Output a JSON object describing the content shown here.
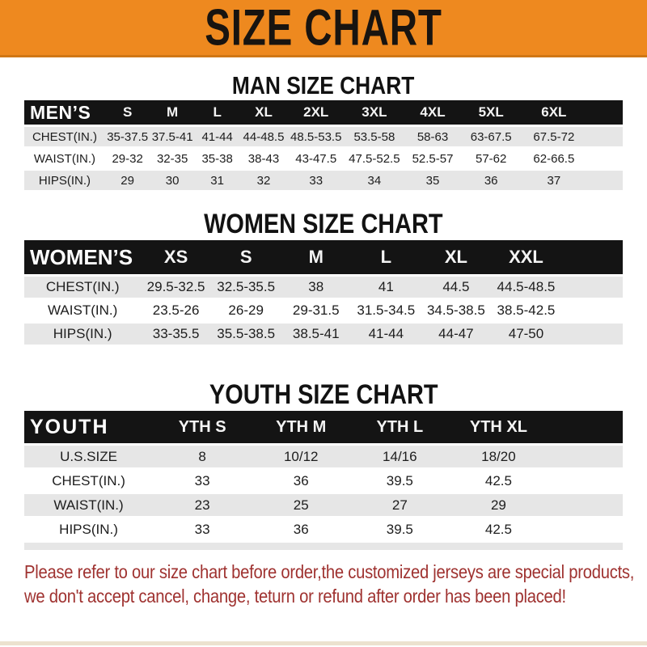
{
  "banner": {
    "title": "SIZE CHART"
  },
  "chart_data": [
    {
      "type": "table",
      "title": "MAN SIZE CHART",
      "header_label": "MEN’S",
      "columns": [
        "S",
        "M",
        "L",
        "XL",
        "2XL",
        "3XL",
        "4XL",
        "5XL",
        "6XL"
      ],
      "rows": [
        {
          "label": "CHEST(IN.)",
          "values": [
            "35-37.5",
            "37.5-41",
            "41-44",
            "44-48.5",
            "48.5-53.5",
            "53.5-58",
            "58-63",
            "63-67.5",
            "67.5-72"
          ]
        },
        {
          "label": "WAIST(IN.)",
          "values": [
            "29-32",
            "32-35",
            "35-38",
            "38-43",
            "43-47.5",
            "47.5-52.5",
            "52.5-57",
            "57-62",
            "62-66.5"
          ]
        },
        {
          "label": "HIPS(IN.)",
          "values": [
            "29",
            "30",
            "31",
            "32",
            "33",
            "34",
            "35",
            "36",
            "37"
          ]
        }
      ]
    },
    {
      "type": "table",
      "title": "WOMEN SIZE CHART",
      "header_label": "WOMEN’S",
      "columns": [
        "XS",
        "S",
        "M",
        "L",
        "XL",
        "XXL"
      ],
      "rows": [
        {
          "label": "CHEST(IN.)",
          "values": [
            "29.5-32.5",
            "32.5-35.5",
            "38",
            "41",
            "44.5",
            "44.5-48.5"
          ]
        },
        {
          "label": "WAIST(IN.)",
          "values": [
            "23.5-26",
            "26-29",
            "29-31.5",
            "31.5-34.5",
            "34.5-38.5",
            "38.5-42.5"
          ]
        },
        {
          "label": "HIPS(IN.)",
          "values": [
            "33-35.5",
            "35.5-38.5",
            "38.5-41",
            "41-44",
            "44-47",
            "47-50"
          ]
        }
      ]
    },
    {
      "type": "table",
      "title": "YOUTH SIZE CHART",
      "header_label": "YOUTH",
      "columns": [
        "YTH S",
        "YTH M",
        "YTH L",
        "YTH XL"
      ],
      "rows": [
        {
          "label": "U.S.SIZE",
          "values": [
            "8",
            "10/12",
            "14/16",
            "18/20"
          ]
        },
        {
          "label": "CHEST(IN.)",
          "values": [
            "33",
            "36",
            "39.5",
            "42.5"
          ]
        },
        {
          "label": "WAIST(IN.)",
          "values": [
            "23",
            "25",
            "27",
            "29"
          ]
        },
        {
          "label": "HIPS(IN.)",
          "values": [
            "33",
            "36",
            "39.5",
            "42.5"
          ]
        }
      ]
    }
  ],
  "note": {
    "line1": "Please refer to our size chart before order,the customized jerseys are special products,",
    "line2": "we don't accept cancel, change, teturn or refund after order has been placed!"
  },
  "colors": {
    "banner_orange": "#ee891f",
    "banner_border": "#d07715",
    "header_black": "#141414",
    "stripe_gray": "#e6e6e6",
    "note_red": "#9f3230"
  }
}
